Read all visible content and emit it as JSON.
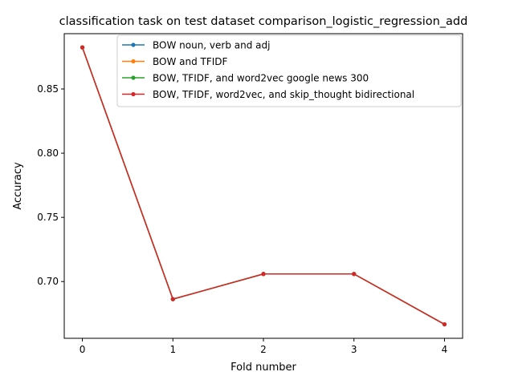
{
  "chart_data": {
    "type": "line",
    "title": "classification task on test dataset comparison_logistic_regression_add",
    "xlabel": "Fold number",
    "ylabel": "Accuracy",
    "x": [
      0,
      1,
      2,
      3,
      4
    ],
    "xticks": [
      "0",
      "1",
      "2",
      "3",
      "4"
    ],
    "yticks": [
      "0.70",
      "0.75",
      "0.80",
      "0.85"
    ],
    "ytick_values": [
      0.7,
      0.75,
      0.8,
      0.85
    ],
    "xlim": [
      -0.2,
      4.2
    ],
    "ylim": [
      0.6558,
      0.8931
    ],
    "grid": false,
    "legend_position": "top-right",
    "series": [
      {
        "name": "BOW noun, verb and adj",
        "color": "#1f77b4",
        "values": [
          0.8824,
          0.6863,
          0.7059,
          0.7059,
          0.6667
        ]
      },
      {
        "name": "BOW and TFIDF",
        "color": "#ff7f0e",
        "values": [
          0.8824,
          0.6863,
          0.7059,
          0.7059,
          0.6667
        ]
      },
      {
        "name": "BOW, TFIDF, and word2vec google news 300",
        "color": "#2ca02c",
        "values": [
          0.8824,
          0.6863,
          0.7059,
          0.7059,
          0.6667
        ]
      },
      {
        "name": "BOW, TFIDF, word2vec, and skip_thought bidirectional",
        "color": "#d62728",
        "values": [
          0.8824,
          0.6863,
          0.7059,
          0.7059,
          0.6667
        ]
      }
    ]
  }
}
